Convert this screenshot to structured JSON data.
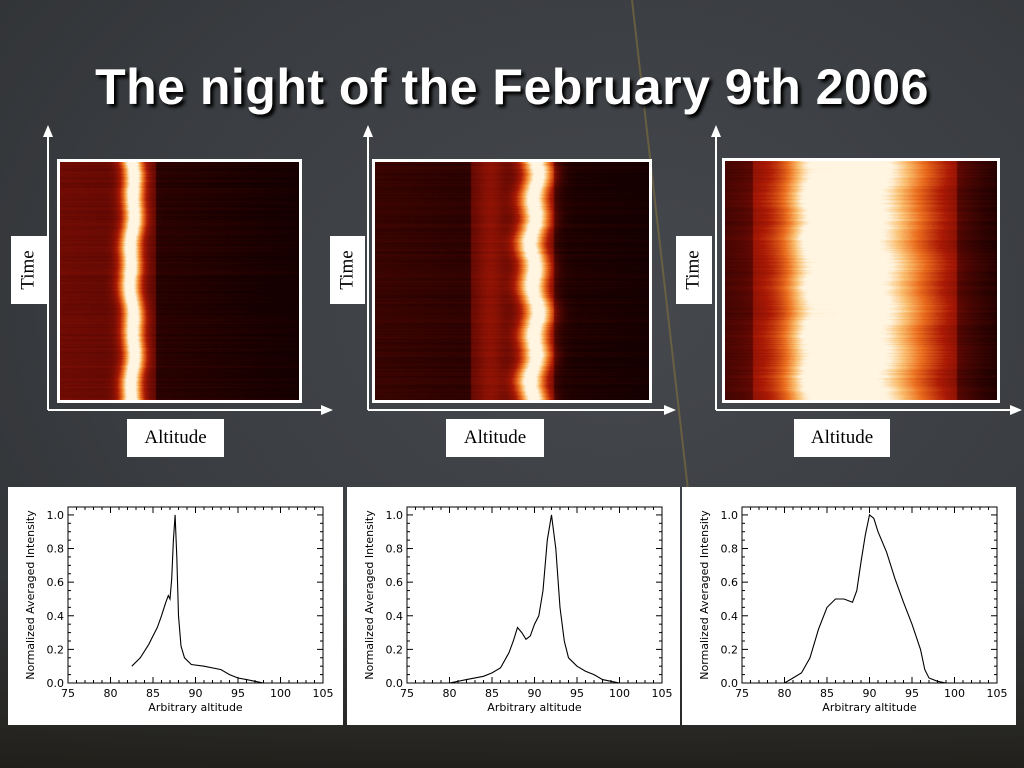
{
  "title": "The night of the February 9th 2006",
  "heatmaps": [
    {
      "time_label": "Time",
      "altitude_label": "Altitude",
      "peak_fraction": 0.3,
      "peak_width": 0.05,
      "base_band": [
        0.0,
        0.4
      ]
    },
    {
      "time_label": "Time",
      "altitude_label": "Altitude",
      "peak_fraction": 0.58,
      "peak_width": 0.06,
      "base_band": [
        0.35,
        0.65
      ]
    },
    {
      "time_label": "Time",
      "altitude_label": "Altitude",
      "peak_fraction": 0.5,
      "peak_width": 0.3,
      "base_band": [
        0.1,
        0.85
      ]
    }
  ],
  "colors": {
    "dark_red": "#2a0202",
    "mid_red": "#8a0f04",
    "bright": "#fff2cc",
    "orange": "#f08a2a"
  },
  "chart_data": [
    {
      "type": "line",
      "xlabel": "Arbitrary altitude",
      "ylabel": "Normalized Averaged Intensity",
      "xlim": [
        75,
        105
      ],
      "ylim": [
        0,
        1.0
      ],
      "xticks": [
        "75",
        "80",
        "85",
        "90",
        "95",
        "100",
        "105"
      ],
      "yticks": [
        "0.0",
        "0.2",
        "0.4",
        "0.6",
        "0.8",
        "1.0"
      ],
      "x": [
        82.5,
        83.5,
        84.5,
        85.0,
        85.5,
        86.0,
        86.5,
        86.8,
        87.0,
        87.2,
        87.4,
        87.6,
        87.8,
        88.0,
        88.3,
        88.7,
        89.5,
        91,
        93,
        94,
        95,
        96,
        97,
        98
      ],
      "y": [
        0.1,
        0.15,
        0.23,
        0.28,
        0.33,
        0.4,
        0.48,
        0.52,
        0.5,
        0.62,
        0.85,
        1.0,
        0.75,
        0.4,
        0.22,
        0.15,
        0.11,
        0.1,
        0.08,
        0.05,
        0.03,
        0.02,
        0.01,
        0.0
      ]
    },
    {
      "type": "line",
      "xlabel": "Arbitrary altitude",
      "ylabel": "Normalized Averaged Intensity",
      "xlim": [
        75,
        105
      ],
      "ylim": [
        0,
        1.0
      ],
      "xticks": [
        "75",
        "80",
        "85",
        "90",
        "95",
        "100",
        "105"
      ],
      "yticks": [
        "0.0",
        "0.2",
        "0.4",
        "0.6",
        "0.8",
        "1.0"
      ],
      "x": [
        80,
        82,
        84,
        85,
        86,
        87,
        87.5,
        88,
        88.5,
        89,
        89.5,
        90,
        90.5,
        91,
        91.5,
        92,
        92.5,
        93,
        93.5,
        94,
        95,
        96,
        97,
        98,
        99,
        100
      ],
      "y": [
        0.0,
        0.02,
        0.04,
        0.06,
        0.09,
        0.18,
        0.25,
        0.33,
        0.3,
        0.26,
        0.28,
        0.35,
        0.4,
        0.55,
        0.85,
        1.0,
        0.8,
        0.45,
        0.25,
        0.15,
        0.1,
        0.07,
        0.05,
        0.02,
        0.01,
        0.0
      ]
    },
    {
      "type": "line",
      "xlabel": "Arbitrary altitude",
      "ylabel": "Normalized Averaged Intensity",
      "xlim": [
        75,
        105
      ],
      "ylim": [
        0,
        1.0
      ],
      "xticks": [
        "75",
        "80",
        "85",
        "90",
        "95",
        "100",
        "105"
      ],
      "yticks": [
        "0.0",
        "0.2",
        "0.4",
        "0.6",
        "0.8",
        "1.0"
      ],
      "x": [
        80,
        81,
        82,
        83,
        84,
        85,
        86,
        87,
        88,
        88.5,
        89,
        89.5,
        90,
        90.5,
        91,
        92,
        93,
        94,
        95,
        96,
        96.5,
        97,
        98,
        99,
        100
      ],
      "y": [
        0.0,
        0.03,
        0.06,
        0.15,
        0.32,
        0.45,
        0.5,
        0.5,
        0.48,
        0.55,
        0.72,
        0.88,
        1.0,
        0.98,
        0.9,
        0.78,
        0.62,
        0.48,
        0.35,
        0.2,
        0.08,
        0.03,
        0.01,
        0.0,
        0.0
      ]
    }
  ]
}
